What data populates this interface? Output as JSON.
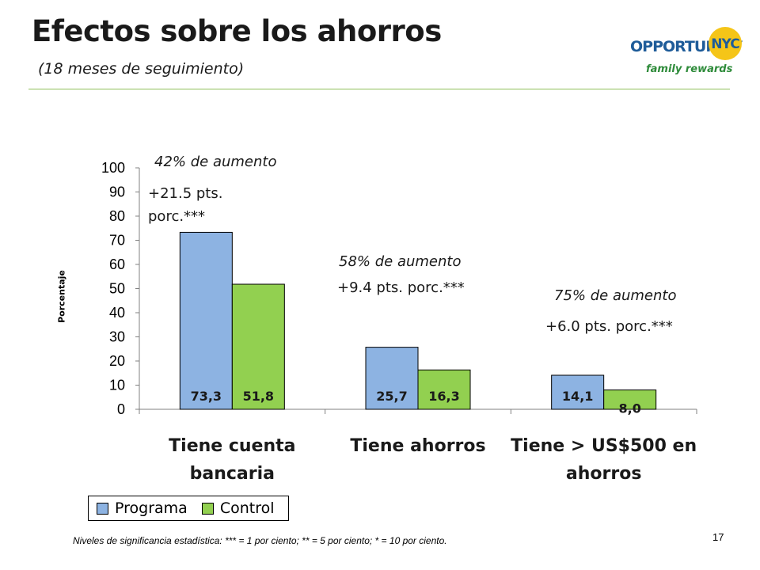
{
  "slide": {
    "title": "Efectos sobre los ahorros",
    "subtitle": "(18 meses de seguimiento)",
    "footnote": "Niveles de significancia estadística:  *** = 1 por ciento; ** = 5 por ciento; * = 10 por ciento.",
    "page_number": "17",
    "logo": {
      "line1": "OPPORTUNITY",
      "nyc": "NYC",
      "line2": "family rewards"
    }
  },
  "annotations": {
    "group1_pct": "42% de aumento",
    "group1_pts_line1": "+21.5 pts.",
    "group1_pts_line2": "porc.***",
    "group2_pct": "58% de aumento",
    "group2_pts": "+9.4 pts. porc.***",
    "group3_pct": "75% de aumento",
    "group3_pts": "+6.0 pts. porc.***"
  },
  "chart_data": {
    "type": "bar",
    "categories": [
      [
        "Tiene cuenta",
        "bancaria"
      ],
      [
        "Tiene ahorros"
      ],
      [
        "Tiene > US$500 en",
        "ahorros"
      ]
    ],
    "series": [
      {
        "name": "Programa",
        "values": [
          73.3,
          25.7,
          14.1
        ],
        "labels": [
          "73,3",
          "25,7",
          "14,1"
        ],
        "color": "#8db3e2"
      },
      {
        "name": "Control",
        "values": [
          51.8,
          16.3,
          8.0
        ],
        "labels": [
          "51,8",
          "16,3",
          "8,0"
        ],
        "color": "#92d050"
      }
    ],
    "ylabel": "Porcentaje",
    "ylim": [
      0,
      100
    ],
    "yticks": [
      "0",
      "10",
      "20",
      "30",
      "40",
      "50",
      "60",
      "70",
      "80",
      "90",
      "100"
    ],
    "grid": false,
    "legend": "bottom-left"
  }
}
